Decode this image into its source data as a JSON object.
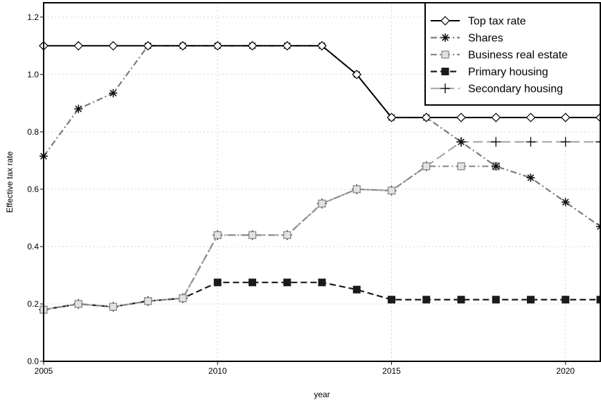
{
  "chart_data": {
    "type": "line",
    "xlabel": "year",
    "ylabel": "Effective tax rate",
    "xlim": [
      2005,
      2021
    ],
    "ylim": [
      0.0,
      1.25
    ],
    "x_ticks": [
      2005,
      2010,
      2015,
      2020
    ],
    "x_tick_labels": [
      "2005",
      "2010",
      "2015",
      "2020"
    ],
    "y_ticks": [
      0.0,
      0.2,
      0.4,
      0.6,
      0.8,
      1.0,
      1.2
    ],
    "y_tick_labels": [
      "0.0",
      "0.2",
      "0.4",
      "0.6",
      "0.8",
      "1.0",
      "1.2"
    ],
    "grid": true,
    "legend_position": "top-right",
    "series": [
      {
        "name": "Top tax rate",
        "color": "#000000",
        "line_style": "solid",
        "marker": "diamond",
        "x": [
          2005,
          2006,
          2007,
          2008,
          2009,
          2010,
          2011,
          2012,
          2013,
          2014,
          2015,
          2016,
          2017,
          2018,
          2019,
          2020,
          2021
        ],
        "values": [
          1.1,
          1.1,
          1.1,
          1.1,
          1.1,
          1.1,
          1.1,
          1.1,
          1.1,
          1.0,
          0.85,
          0.85,
          0.85,
          0.85,
          0.85,
          0.85,
          0.85
        ]
      },
      {
        "name": "Shares",
        "color": "#7a7a7a",
        "line_style": "dashdot",
        "marker": "asterisk",
        "x": [
          2005,
          2006,
          2007,
          2008,
          2009,
          2010,
          2011,
          2012,
          2013,
          2014,
          2015,
          2016,
          2017,
          2018,
          2019,
          2020,
          2021
        ],
        "values": [
          0.715,
          0.88,
          0.935,
          1.1,
          1.1,
          1.1,
          1.1,
          1.1,
          1.1,
          1.0,
          0.85,
          0.85,
          0.765,
          0.68,
          0.64,
          0.555,
          0.47
        ]
      },
      {
        "name": "Business real estate",
        "color": "#8a8a8a",
        "line_style": "dashdot",
        "marker": "square-open",
        "x": [
          2005,
          2006,
          2007,
          2008,
          2009,
          2010,
          2011,
          2012,
          2013,
          2014,
          2015,
          2016,
          2017,
          2018
        ],
        "values": [
          0.18,
          0.2,
          0.19,
          0.21,
          0.22,
          0.44,
          0.44,
          0.44,
          0.55,
          0.6,
          0.595,
          0.68,
          0.68,
          0.68
        ]
      },
      {
        "name": "Primary housing",
        "color": "#1a1a1a",
        "line_style": "dashed",
        "marker": "square-filled",
        "x": [
          2005,
          2006,
          2007,
          2008,
          2009,
          2010,
          2011,
          2012,
          2013,
          2014,
          2015,
          2016,
          2017,
          2018,
          2019,
          2020,
          2021
        ],
        "values": [
          0.18,
          0.2,
          0.19,
          0.21,
          0.22,
          0.275,
          0.275,
          0.275,
          0.275,
          0.25,
          0.215,
          0.215,
          0.215,
          0.215,
          0.215,
          0.215,
          0.215
        ]
      },
      {
        "name": "Secondary housing",
        "color": "#aaaaaa",
        "line_style": "longdash",
        "marker": "plus",
        "x": [
          2005,
          2006,
          2007,
          2008,
          2009,
          2010,
          2011,
          2012,
          2013,
          2014,
          2015,
          2016,
          2017,
          2018,
          2019,
          2020,
          2021
        ],
        "values": [
          0.18,
          0.2,
          0.19,
          0.21,
          0.22,
          0.44,
          0.44,
          0.44,
          0.55,
          0.6,
          0.595,
          0.68,
          0.765,
          0.765,
          0.765,
          0.765,
          0.765
        ]
      }
    ]
  }
}
